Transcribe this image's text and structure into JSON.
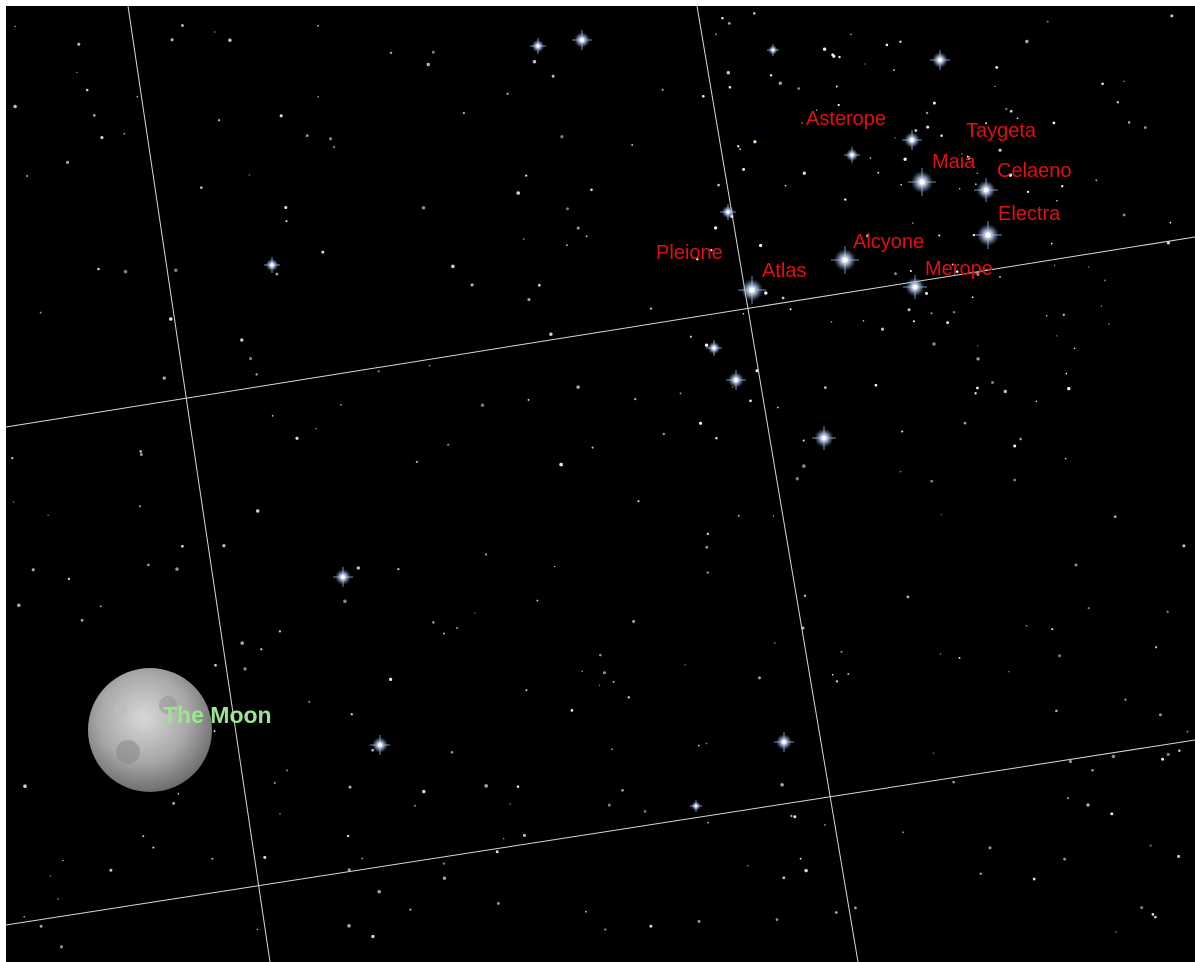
{
  "stars": [
    "Asterope",
    "Taygeta",
    "Maia",
    "Celaeno",
    "Electra",
    "Alcyone",
    "Pleione",
    "Atlas",
    "Merope"
  ],
  "moon": "The Moon"
}
